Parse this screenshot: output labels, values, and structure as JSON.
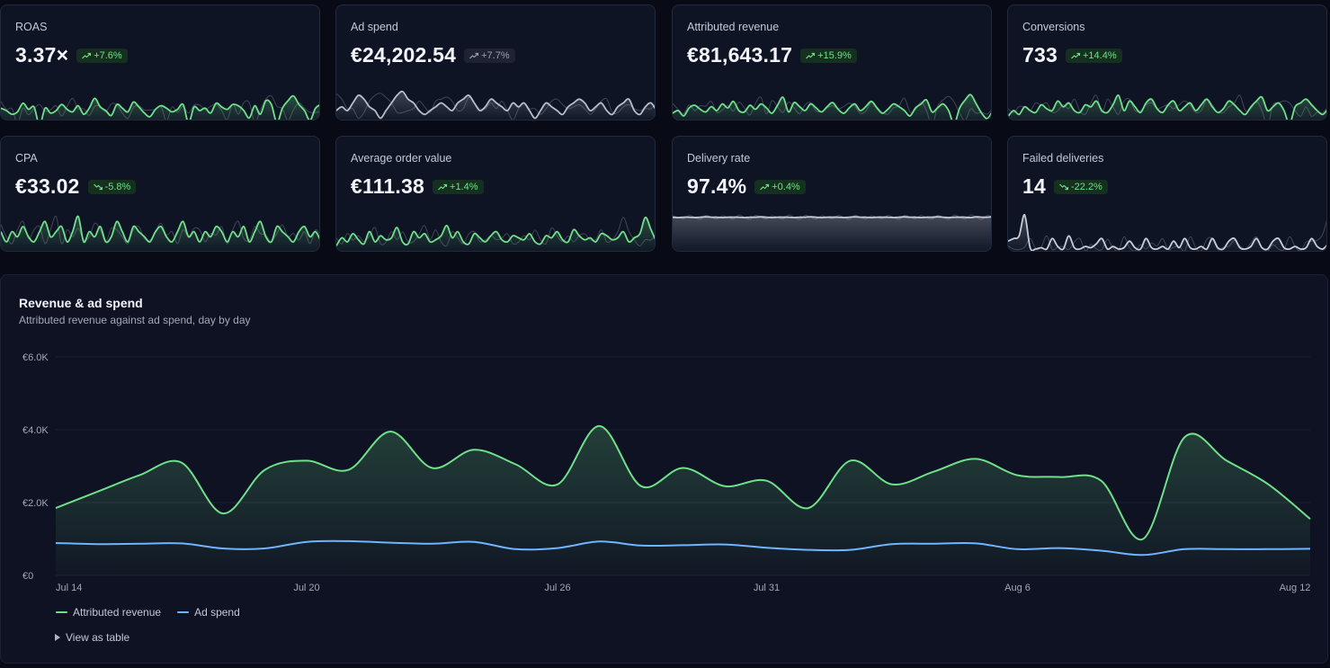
{
  "kpis": [
    {
      "label": "ROAS",
      "value": "3.37×",
      "change": "+7.6%",
      "direction": "up",
      "tone": "positive",
      "spark_color": "#6fe08a",
      "spark": [
        52,
        50,
        47,
        49,
        56,
        51,
        53,
        38,
        52,
        48,
        50,
        55,
        51,
        49,
        54,
        47,
        52,
        60,
        53,
        50,
        46,
        55,
        52,
        49,
        57,
        53,
        48,
        45,
        51,
        54,
        52,
        49,
        51,
        55,
        40,
        53,
        50,
        52,
        48,
        56,
        53,
        51,
        55,
        54,
        50,
        44,
        54,
        47,
        58,
        55,
        40,
        52,
        58,
        62,
        55,
        50,
        42,
        52,
        55
      ]
    },
    {
      "label": "Ad spend",
      "value": "€24,202.54",
      "change": "+7.7%",
      "direction": "up",
      "tone": "neutral",
      "spark_color": "#b8bccb",
      "spark": [
        50,
        51,
        50,
        52,
        54,
        53,
        51,
        50,
        48,
        50,
        52,
        54,
        55,
        53,
        52,
        50,
        49,
        50,
        51,
        52,
        51,
        50,
        52,
        53,
        54,
        52,
        50,
        51,
        53,
        52,
        51,
        50,
        52,
        51,
        52,
        50,
        48,
        50,
        52,
        51,
        50,
        49,
        51,
        52,
        53,
        52,
        50,
        51,
        52,
        50,
        49,
        51,
        52,
        53,
        50,
        49,
        51,
        52,
        50
      ]
    },
    {
      "label": "Attributed revenue",
      "value": "€81,643.17",
      "change": "+15.9%",
      "direction": "up",
      "tone": "positive",
      "spark_color": "#6fe08a",
      "spark": [
        48,
        50,
        46,
        52,
        54,
        51,
        49,
        53,
        50,
        55,
        52,
        57,
        50,
        49,
        54,
        51,
        55,
        52,
        48,
        54,
        60,
        49,
        56,
        53,
        50,
        55,
        52,
        49,
        53,
        56,
        51,
        48,
        52,
        55,
        50,
        53,
        57,
        52,
        48,
        51,
        55,
        53,
        50,
        46,
        52,
        55,
        58,
        49,
        52,
        55,
        50,
        40,
        52,
        58,
        62,
        55,
        48,
        44,
        50
      ]
    },
    {
      "label": "Conversions",
      "value": "733",
      "change": "+14.4%",
      "direction": "up",
      "tone": "positive",
      "spark_color": "#6fe08a",
      "spark": [
        47,
        50,
        48,
        52,
        50,
        49,
        53,
        51,
        50,
        55,
        52,
        54,
        50,
        49,
        53,
        52,
        55,
        50,
        49,
        53,
        58,
        50,
        55,
        52,
        49,
        54,
        56,
        51,
        49,
        53,
        55,
        50,
        52,
        54,
        50,
        53,
        56,
        52,
        49,
        51,
        55,
        53,
        50,
        48,
        52,
        55,
        57,
        50,
        52,
        54,
        50,
        43,
        52,
        54,
        56,
        53,
        50,
        48,
        51
      ]
    },
    {
      "label": "CPA",
      "value": "€33.02",
      "change": "-5.8%",
      "direction": "down",
      "tone": "positive",
      "spark_color": "#6fe08a",
      "spark": [
        52,
        50,
        52,
        51,
        53,
        51,
        50,
        52,
        54,
        51,
        52,
        53,
        50,
        52,
        55,
        50,
        52,
        51,
        53,
        50,
        51,
        54,
        52,
        50,
        53,
        52,
        51,
        50,
        52,
        53,
        51,
        50,
        52,
        54,
        51,
        52,
        50,
        52,
        51,
        53,
        52,
        50,
        52,
        51,
        53,
        50,
        52,
        54,
        51,
        50,
        53,
        52,
        51,
        50,
        52,
        53,
        51,
        52,
        50
      ]
    },
    {
      "label": "Average order value",
      "value": "€111.38",
      "change": "+1.4%",
      "direction": "up",
      "tone": "positive",
      "spark_color": "#6fe08a",
      "spark": [
        48,
        52,
        50,
        54,
        51,
        49,
        55,
        50,
        53,
        51,
        52,
        57,
        50,
        49,
        55,
        52,
        54,
        50,
        51,
        53,
        58,
        52,
        55,
        50,
        49,
        54,
        52,
        50,
        53,
        55,
        51,
        50,
        53,
        52,
        51,
        54,
        50,
        49,
        53,
        52,
        55,
        51,
        50,
        56,
        53,
        51,
        52,
        50,
        54,
        53,
        51,
        52,
        55,
        50,
        52,
        54,
        62,
        56,
        50
      ]
    },
    {
      "label": "Delivery rate",
      "value": "97.4%",
      "change": "+0.4%",
      "direction": "up",
      "tone": "positive",
      "spark_color": "#c8ccd8",
      "spark": [
        85,
        84,
        85,
        85,
        84,
        85,
        86,
        85,
        85,
        84,
        85,
        85,
        85,
        84,
        85,
        85,
        86,
        85,
        84,
        85,
        85,
        85,
        84,
        85,
        85,
        86,
        85,
        84,
        85,
        85,
        85,
        84,
        85,
        86,
        85,
        85,
        84,
        85,
        85,
        85,
        84,
        85,
        86,
        85,
        85,
        84,
        85,
        85,
        86,
        85,
        84,
        85,
        85,
        85,
        84,
        86,
        85,
        85,
        86
      ]
    },
    {
      "label": "Failed deliveries",
      "value": "14",
      "change": "-22.2%",
      "direction": "down",
      "tone": "positive",
      "spark_color": "#c8ccd8",
      "spark": [
        10,
        12,
        14,
        30,
        5,
        4,
        5,
        4,
        12,
        6,
        4,
        14,
        5,
        4,
        6,
        5,
        8,
        12,
        4,
        6,
        4,
        5,
        10,
        5,
        4,
        12,
        5,
        4,
        6,
        4,
        10,
        5,
        12,
        5,
        4,
        6,
        4,
        12,
        5,
        4,
        10,
        12,
        5,
        4,
        6,
        12,
        5,
        4,
        10,
        12,
        5,
        4,
        6,
        4,
        5,
        12,
        6,
        4,
        8
      ]
    }
  ],
  "main_chart": {
    "title": "Revenue & ad spend",
    "subtitle": "Attributed revenue against ad spend, day by day",
    "view_as_table_label": "View as table",
    "legend": [
      {
        "name": "Attributed revenue",
        "color": "#6fe08a"
      },
      {
        "name": "Ad spend",
        "color": "#6fb4ff"
      }
    ]
  },
  "chart_data": {
    "type": "area",
    "title": "Revenue & ad spend",
    "subtitle": "Attributed revenue against ad spend, day by day",
    "x": [
      "Jul 14",
      "Jul 15",
      "Jul 16",
      "Jul 17",
      "Jul 18",
      "Jul 19",
      "Jul 20",
      "Jul 21",
      "Jul 22",
      "Jul 23",
      "Jul 24",
      "Jul 25",
      "Jul 26",
      "Jul 27",
      "Jul 28",
      "Jul 29",
      "Jul 30",
      "Jul 31",
      "Aug 1",
      "Aug 2",
      "Aug 3",
      "Aug 4",
      "Aug 5",
      "Aug 6",
      "Aug 7",
      "Aug 8",
      "Aug 9",
      "Aug 10",
      "Aug 11",
      "Aug 12",
      "Aug 13"
    ],
    "x_tick_labels": [
      "Jul 14",
      "Jul 20",
      "Jul 26",
      "Jul 31",
      "Aug 6",
      "Aug 12"
    ],
    "series": [
      {
        "name": "Attributed revenue",
        "color": "#6fe08a",
        "values": [
          1850,
          2300,
          2750,
          3100,
          1700,
          2900,
          3150,
          2900,
          3950,
          2950,
          3450,
          3050,
          2500,
          4100,
          2450,
          2950,
          2450,
          2600,
          1850,
          3150,
          2500,
          2850,
          3200,
          2750,
          2700,
          2600,
          1000,
          3800,
          3150,
          2500,
          1550
        ]
      },
      {
        "name": "Ad spend",
        "color": "#6fb4ff",
        "values": [
          890,
          860,
          870,
          880,
          740,
          740,
          920,
          940,
          900,
          870,
          920,
          720,
          750,
          930,
          820,
          830,
          850,
          760,
          700,
          700,
          860,
          870,
          880,
          720,
          750,
          680,
          560,
          720,
          720,
          720,
          730
        ]
      }
    ],
    "y_ticks": [
      "€0",
      "€2.0K",
      "€4.0K",
      "€6.0K"
    ],
    "ylim": [
      0,
      6000
    ],
    "grid": true,
    "legend_position": "bottom-left"
  }
}
